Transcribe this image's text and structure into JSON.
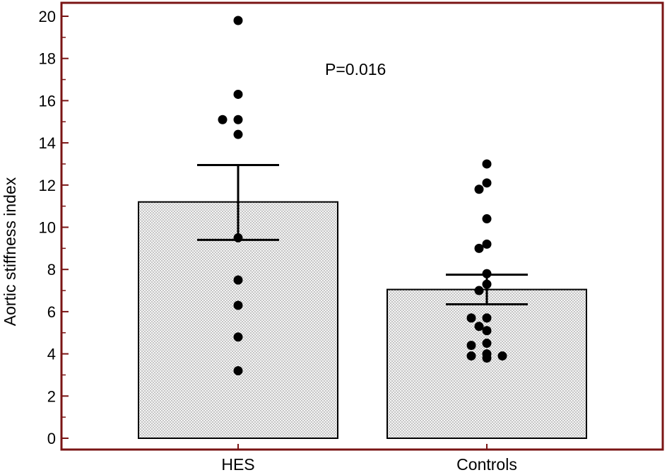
{
  "chart_data": {
    "type": "bar",
    "ylabel": "Aortic stiffness index",
    "ylim": [
      0,
      20
    ],
    "yticks": [
      0,
      2,
      4,
      6,
      8,
      10,
      12,
      14,
      16,
      18,
      20
    ],
    "categories": [
      "HES",
      "Controls"
    ],
    "bars": [
      {
        "category": "HES",
        "mean": 11.2,
        "error_upper": 12.95,
        "error_lower": 9.4,
        "points": [
          19.8,
          16.3,
          15.1,
          15.1,
          14.4,
          9.5,
          7.5,
          6.3,
          4.8,
          3.2
        ]
      },
      {
        "category": "Controls",
        "mean": 7.05,
        "error_upper": 7.75,
        "error_lower": 6.35,
        "points": [
          13.0,
          12.1,
          11.8,
          10.4,
          9.2,
          9.0,
          7.8,
          7.3,
          7.0,
          5.7,
          5.7,
          5.3,
          5.1,
          4.5,
          4.4,
          4.0,
          3.9,
          3.9,
          3.8
        ]
      }
    ],
    "annotations": [
      "P=0.016"
    ],
    "colors": {
      "frame": "#7a1414",
      "bar_fill": "#f2f2f2",
      "stroke": "#000000",
      "point": "#000000"
    },
    "bar_fill_pattern": "fine-dots",
    "grid": false,
    "legend": "none"
  }
}
